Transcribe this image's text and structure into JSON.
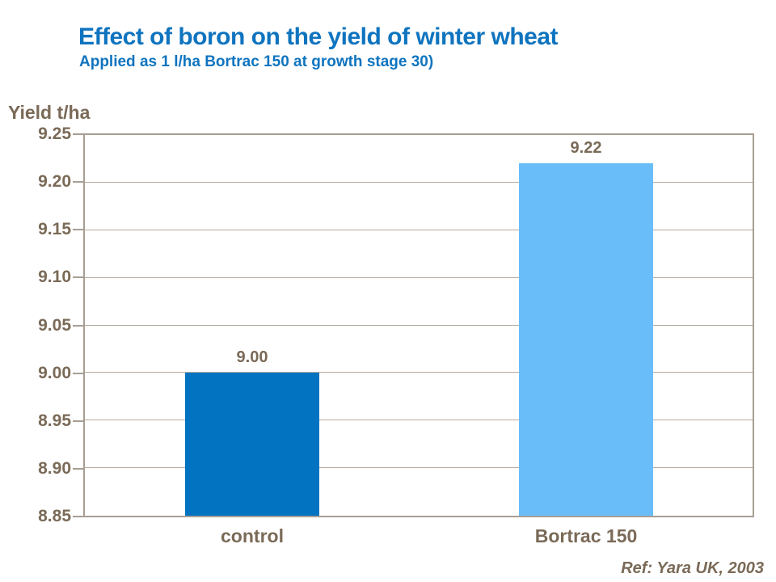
{
  "header": {
    "title": "Effect of boron on the yield of winter wheat",
    "subtitle": "Applied as 1 l/ha Bortrac 150 at growth stage 30)"
  },
  "footer": {
    "reference": "Ref: Yara UK, 2003"
  },
  "colors": {
    "title_text": "#0f74bf",
    "axis_text": "#7a6a57",
    "gridline": "#b5aba0",
    "plot_border": "#a89e94",
    "background": "#ffffff"
  },
  "chart_data": {
    "type": "bar",
    "title": "Effect of boron on the yield of winter wheat",
    "subtitle": "Applied as 1 l/ha Bortrac 150 at growth stage 30)",
    "ylabel": "Yield t/ha",
    "xlabel": "",
    "categories": [
      "control",
      "Bortrac 150"
    ],
    "values": [
      9.0,
      9.22
    ],
    "value_labels": [
      "9.00",
      "9.22"
    ],
    "bar_colors": [
      "#0173c1",
      "#69bdf9"
    ],
    "ylim": [
      8.85,
      9.25
    ],
    "ytick_step": 0.05,
    "ytick_labels": [
      "9.25",
      "9.20",
      "9.15",
      "9.10",
      "9.05",
      "9.00",
      "8.95",
      "8.90",
      "8.85"
    ],
    "grid": true,
    "legend_position": "none"
  }
}
